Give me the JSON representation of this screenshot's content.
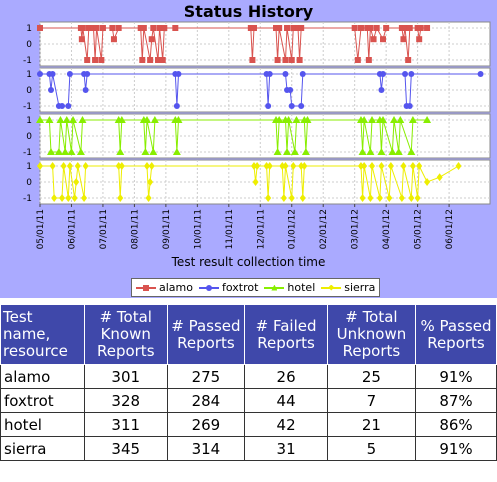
{
  "chart_title": "Status History",
  "chart_data": {
    "type": "line",
    "title": "Status History",
    "xlabel": "Test result collection time",
    "ylabel": "",
    "x_ticks": [
      "05/01/11",
      "06/01/11",
      "07/01/11",
      "08/01/11",
      "09/01/11",
      "10/01/11",
      "11/01/11",
      "12/01/11",
      "01/01/12",
      "02/01/12",
      "03/01/12",
      "04/01/12",
      "05/01/12",
      "06/01/12"
    ],
    "y_ticks": [
      1,
      0,
      -1
    ],
    "ylim": [
      -1,
      1
    ],
    "x_range_months": [
      0,
      14.3
    ],
    "grid": true,
    "legend_placement": "bottom",
    "series": [
      {
        "name": "alamo",
        "color": "#d9534f",
        "marker": "square",
        "points": [
          [
            0,
            1
          ],
          [
            1.3,
            1
          ],
          [
            1.33,
            0.3
          ],
          [
            1.36,
            1
          ],
          [
            1.5,
            -1
          ],
          [
            1.55,
            1
          ],
          [
            1.7,
            1
          ],
          [
            1.75,
            -1
          ],
          [
            1.8,
            1
          ],
          [
            1.95,
            -1
          ],
          [
            2.0,
            1
          ],
          [
            2.3,
            1
          ],
          [
            2.35,
            0.3
          ],
          [
            2.5,
            1
          ],
          [
            3.2,
            1
          ],
          [
            3.25,
            -1
          ],
          [
            3.3,
            1
          ],
          [
            3.5,
            -1
          ],
          [
            3.55,
            0.3
          ],
          [
            3.6,
            1
          ],
          [
            3.75,
            -1
          ],
          [
            3.8,
            1
          ],
          [
            3.9,
            -1
          ],
          [
            3.95,
            1
          ],
          [
            4.3,
            1
          ],
          [
            6.7,
            1
          ],
          [
            6.75,
            -1
          ],
          [
            6.8,
            1
          ],
          [
            7.5,
            1
          ],
          [
            7.55,
            -1
          ],
          [
            7.6,
            1
          ],
          [
            7.8,
            -1
          ],
          [
            7.85,
            1
          ],
          [
            8.0,
            -1
          ],
          [
            8.05,
            1
          ],
          [
            8.2,
            1
          ],
          [
            8.25,
            -1
          ],
          [
            8.3,
            1
          ],
          [
            10.0,
            1
          ],
          [
            10.1,
            -1
          ],
          [
            10.2,
            1
          ],
          [
            10.4,
            1
          ],
          [
            10.45,
            -1
          ],
          [
            10.5,
            1
          ],
          [
            10.6,
            0.3
          ],
          [
            10.7,
            1
          ],
          [
            10.9,
            0.3
          ],
          [
            11.0,
            1
          ],
          [
            11.5,
            1
          ],
          [
            11.55,
            0.3
          ],
          [
            11.6,
            1
          ],
          [
            11.7,
            -1
          ],
          [
            11.75,
            1
          ],
          [
            12.0,
            1
          ],
          [
            12.05,
            0.3
          ],
          [
            12.1,
            1
          ],
          [
            12.3,
            1
          ]
        ]
      },
      {
        "name": "foxtrot",
        "color": "#5555ee",
        "marker": "circle",
        "points": [
          [
            0,
            1
          ],
          [
            0.3,
            1
          ],
          [
            0.35,
            0
          ],
          [
            0.4,
            1
          ],
          [
            0.6,
            -1
          ],
          [
            0.7,
            -1
          ],
          [
            0.9,
            -1
          ],
          [
            0.95,
            1
          ],
          [
            1.4,
            1
          ],
          [
            1.45,
            0
          ],
          [
            1.5,
            1
          ],
          [
            4.3,
            1
          ],
          [
            4.35,
            -1
          ],
          [
            4.4,
            1
          ],
          [
            7.2,
            1
          ],
          [
            7.25,
            -1
          ],
          [
            7.3,
            1
          ],
          [
            7.8,
            1
          ],
          [
            7.85,
            0
          ],
          [
            7.95,
            0
          ],
          [
            8.0,
            -1
          ],
          [
            8.3,
            -1
          ],
          [
            8.35,
            1
          ],
          [
            10.8,
            1
          ],
          [
            10.85,
            0
          ],
          [
            10.9,
            1
          ],
          [
            11.6,
            1
          ],
          [
            11.65,
            -1
          ],
          [
            11.75,
            -1
          ],
          [
            11.8,
            1
          ],
          [
            14.0,
            1
          ]
        ]
      },
      {
        "name": "hotel",
        "color": "#88ee00",
        "marker": "triangle",
        "points": [
          [
            0,
            1
          ],
          [
            0.3,
            1
          ],
          [
            0.35,
            -1
          ],
          [
            0.6,
            -1
          ],
          [
            0.65,
            1
          ],
          [
            0.8,
            -1
          ],
          [
            0.85,
            1
          ],
          [
            1.0,
            -1
          ],
          [
            1.05,
            1
          ],
          [
            1.3,
            -1
          ],
          [
            1.35,
            1
          ],
          [
            2.5,
            1
          ],
          [
            2.55,
            -1
          ],
          [
            2.6,
            1
          ],
          [
            3.3,
            1
          ],
          [
            3.35,
            -1
          ],
          [
            3.4,
            1
          ],
          [
            3.6,
            -1
          ],
          [
            3.65,
            1
          ],
          [
            4.3,
            1
          ],
          [
            4.35,
            -1
          ],
          [
            4.4,
            1
          ],
          [
            7.5,
            1
          ],
          [
            7.55,
            -1
          ],
          [
            7.6,
            1
          ],
          [
            7.8,
            1
          ],
          [
            7.85,
            -1
          ],
          [
            7.9,
            1
          ],
          [
            8.1,
            -1
          ],
          [
            8.15,
            1
          ],
          [
            8.4,
            1
          ],
          [
            8.45,
            -1
          ],
          [
            8.5,
            1
          ],
          [
            10.2,
            1
          ],
          [
            10.25,
            -1
          ],
          [
            10.3,
            1
          ],
          [
            10.5,
            -1
          ],
          [
            10.55,
            1
          ],
          [
            10.8,
            1
          ],
          [
            10.85,
            -1
          ],
          [
            10.9,
            1
          ],
          [
            11.2,
            -1
          ],
          [
            11.25,
            1
          ],
          [
            11.4,
            -1
          ],
          [
            11.45,
            1
          ],
          [
            11.8,
            -1
          ],
          [
            11.85,
            1
          ],
          [
            12.3,
            1
          ]
        ]
      },
      {
        "name": "sierra",
        "color": "#eeee00",
        "marker": "diamond",
        "points": [
          [
            0,
            1
          ],
          [
            0.4,
            1
          ],
          [
            0.45,
            -1
          ],
          [
            0.7,
            -1
          ],
          [
            0.75,
            1
          ],
          [
            0.9,
            -1
          ],
          [
            0.95,
            1
          ],
          [
            1.1,
            -1
          ],
          [
            1.15,
            0
          ],
          [
            1.2,
            1
          ],
          [
            1.4,
            -1
          ],
          [
            1.45,
            1
          ],
          [
            2.5,
            1
          ],
          [
            2.55,
            -1
          ],
          [
            2.6,
            1
          ],
          [
            3.4,
            1
          ],
          [
            3.45,
            -1
          ],
          [
            3.5,
            0
          ],
          [
            3.55,
            1
          ],
          [
            6.8,
            1
          ],
          [
            6.85,
            0
          ],
          [
            6.9,
            1
          ],
          [
            7.2,
            1
          ],
          [
            7.25,
            -1
          ],
          [
            7.3,
            1
          ],
          [
            7.7,
            1
          ],
          [
            7.75,
            -1
          ],
          [
            7.8,
            1
          ],
          [
            8.0,
            -1
          ],
          [
            8.05,
            1
          ],
          [
            8.3,
            1
          ],
          [
            8.35,
            -1
          ],
          [
            8.4,
            1
          ],
          [
            10.2,
            1
          ],
          [
            10.25,
            -1
          ],
          [
            10.3,
            1
          ],
          [
            10.5,
            -1
          ],
          [
            10.55,
            1
          ],
          [
            10.8,
            -1
          ],
          [
            10.85,
            1
          ],
          [
            11.1,
            -1
          ],
          [
            11.15,
            1
          ],
          [
            11.5,
            -1
          ],
          [
            11.55,
            1
          ],
          [
            11.8,
            -1
          ],
          [
            11.85,
            1
          ],
          [
            12.0,
            -1
          ],
          [
            12.05,
            1
          ],
          [
            12.3,
            0
          ],
          [
            12.7,
            0.3
          ],
          [
            13.3,
            1
          ]
        ]
      }
    ]
  },
  "table": {
    "headers": [
      "Test name, resource",
      "# Total Known Reports",
      "# Passed Reports",
      "# Failed Reports",
      "# Total Unknown Reports",
      "% Passed Reports"
    ],
    "rows": [
      {
        "name": "alamo",
        "known": "301",
        "passed": "275",
        "failed": "26",
        "unknown": "25",
        "pct": "91%"
      },
      {
        "name": "foxtrot",
        "known": "328",
        "passed": "284",
        "failed": "44",
        "unknown": "7",
        "pct": "87%"
      },
      {
        "name": "hotel",
        "known": "311",
        "passed": "269",
        "failed": "42",
        "unknown": "21",
        "pct": "86%"
      },
      {
        "name": "sierra",
        "known": "345",
        "passed": "314",
        "failed": "31",
        "unknown": "5",
        "pct": "91%"
      }
    ]
  }
}
